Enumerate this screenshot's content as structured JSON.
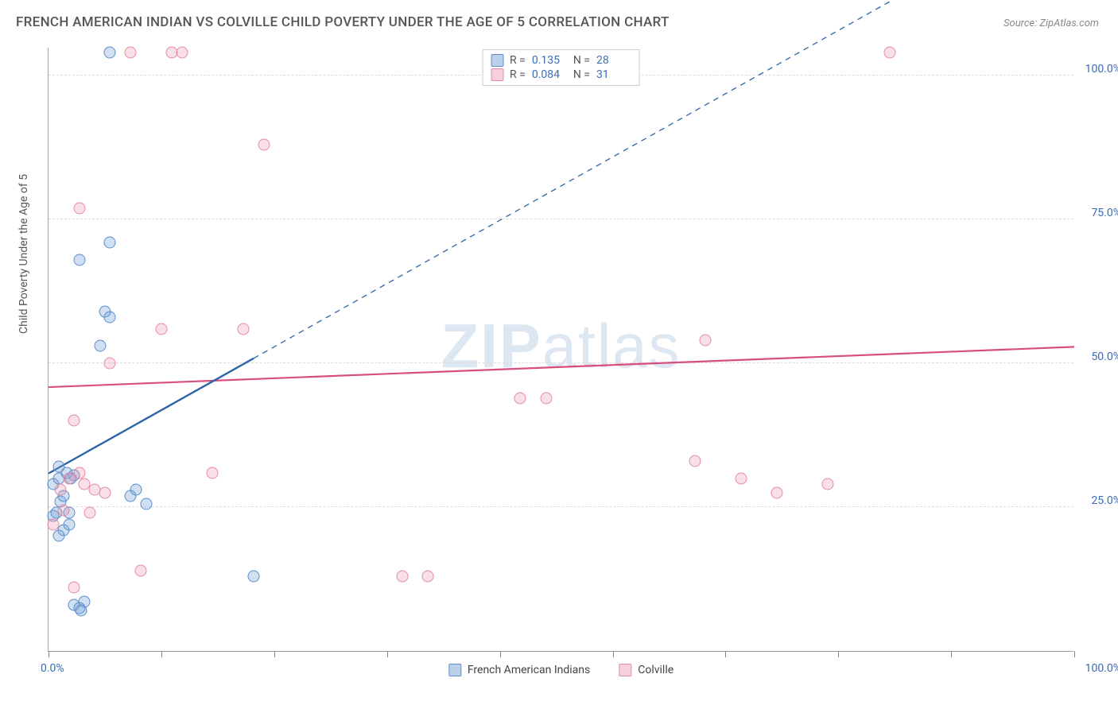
{
  "title": "FRENCH AMERICAN INDIAN VS COLVILLE CHILD POVERTY UNDER THE AGE OF 5 CORRELATION CHART",
  "source": "Source: ZipAtlas.com",
  "ylabel": "Child Poverty Under the Age of 5",
  "watermark": "ZIPatlas",
  "chart": {
    "type": "scatter",
    "xlim": [
      0,
      100
    ],
    "ylim": [
      0,
      105
    ],
    "x_ticks": [
      0,
      11,
      22,
      33,
      44,
      55,
      66,
      77,
      88,
      100
    ],
    "y_gridlines": [
      25,
      50,
      75,
      100
    ],
    "y_axis_labels": [
      "25.0%",
      "50.0%",
      "75.0%",
      "100.0%"
    ],
    "x_axis_min_label": "0.0%",
    "x_axis_max_label": "100.0%",
    "background_color": "#ffffff",
    "grid_color": "#dddddd",
    "axis_text_color": "#3b6db5",
    "series": [
      {
        "name": "French American Indians",
        "color_fill": "rgba(120,163,214,0.35)",
        "color_stroke": "#5b8dc9",
        "line_color": "#2e64a8",
        "r_value": "0.135",
        "n_value": "28",
        "trend": {
          "x1": 0,
          "y1": 31,
          "x2_solid": 20,
          "y2_solid": 51,
          "x2_dash": 85,
          "y2_dash": 116
        },
        "points": [
          [
            0.5,
            29
          ],
          [
            0.5,
            23.5
          ],
          [
            0.8,
            24
          ],
          [
            1.0,
            30
          ],
          [
            1.2,
            26
          ],
          [
            1.5,
            21
          ],
          [
            1.0,
            20
          ],
          [
            1.5,
            27
          ],
          [
            1.8,
            31
          ],
          [
            2.0,
            24
          ],
          [
            2.5,
            30.5
          ],
          [
            2.0,
            22
          ],
          [
            2.5,
            8
          ],
          [
            3.0,
            7.5
          ],
          [
            3.5,
            8.5
          ],
          [
            3.2,
            7
          ],
          [
            3.0,
            68
          ],
          [
            6.0,
            71
          ],
          [
            5.5,
            59
          ],
          [
            6.0,
            58
          ],
          [
            5.0,
            53
          ],
          [
            6.0,
            104
          ],
          [
            8.0,
            27
          ],
          [
            9.5,
            25.5
          ],
          [
            8.5,
            28
          ],
          [
            20.0,
            13
          ],
          [
            1.0,
            32
          ],
          [
            2.2,
            30
          ]
        ]
      },
      {
        "name": "Colville",
        "color_fill": "rgba(235,150,175,0.3)",
        "color_stroke": "#e38ba5",
        "line_color": "#d84e7c",
        "r_value": "0.084",
        "n_value": "31",
        "trend": {
          "x1": 0,
          "y1": 46,
          "x2_solid": 100,
          "y2_solid": 53
        },
        "points": [
          [
            0.5,
            22
          ],
          [
            1.5,
            24.5
          ],
          [
            2.0,
            30
          ],
          [
            2.5,
            40
          ],
          [
            3.0,
            31
          ],
          [
            3.5,
            29
          ],
          [
            4.5,
            28
          ],
          [
            5.5,
            27.5
          ],
          [
            6.0,
            50
          ],
          [
            8.0,
            104
          ],
          [
            9.0,
            14
          ],
          [
            11.0,
            56
          ],
          [
            12.0,
            104
          ],
          [
            13.0,
            104
          ],
          [
            16.0,
            31
          ],
          [
            19.0,
            56
          ],
          [
            21.0,
            88
          ],
          [
            3.0,
            77
          ],
          [
            2.5,
            11
          ],
          [
            34.5,
            13
          ],
          [
            37.0,
            13
          ],
          [
            46.0,
            44
          ],
          [
            48.5,
            44
          ],
          [
            63.0,
            33
          ],
          [
            64.0,
            54
          ],
          [
            67.5,
            30
          ],
          [
            71.0,
            27.5
          ],
          [
            76.0,
            29
          ],
          [
            82.0,
            104
          ],
          [
            4.0,
            24
          ],
          [
            1.2,
            28
          ]
        ]
      }
    ]
  },
  "stat_labels": {
    "r": "R  =",
    "n": "N  ="
  }
}
